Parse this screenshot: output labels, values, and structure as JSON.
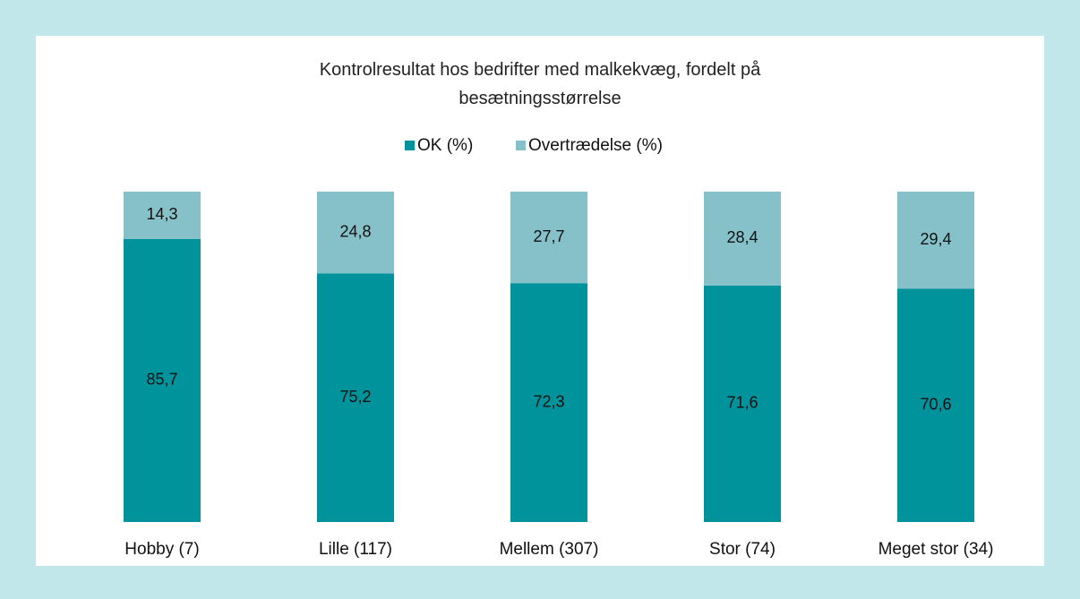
{
  "chart_data": {
    "type": "stacked_bar",
    "title": "Kontrolresultat hos bedrifter med malkekvæg, fordelt på besætningsstørrelse",
    "categories": [
      "Hobby (7)",
      "Lille (117)",
      "Mellem (307)",
      "Stor (74)",
      "Meget stor (34)"
    ],
    "series": [
      {
        "name": "OK (%)",
        "color": "#00939b",
        "values": [
          85.7,
          75.2,
          72.3,
          71.6,
          70.6
        ],
        "value_labels": [
          "85,7",
          "75,2",
          "72,3",
          "71,6",
          "70,6"
        ]
      },
      {
        "name": "Overtrædelse (%)",
        "color": "#86c1c9",
        "values": [
          14.3,
          24.8,
          27.7,
          28.4,
          29.4
        ],
        "value_labels": [
          "14,3",
          "24,8",
          "27,7",
          "28,4",
          "29,4"
        ]
      }
    ],
    "ylim": [
      0,
      100
    ],
    "legend": "top"
  }
}
